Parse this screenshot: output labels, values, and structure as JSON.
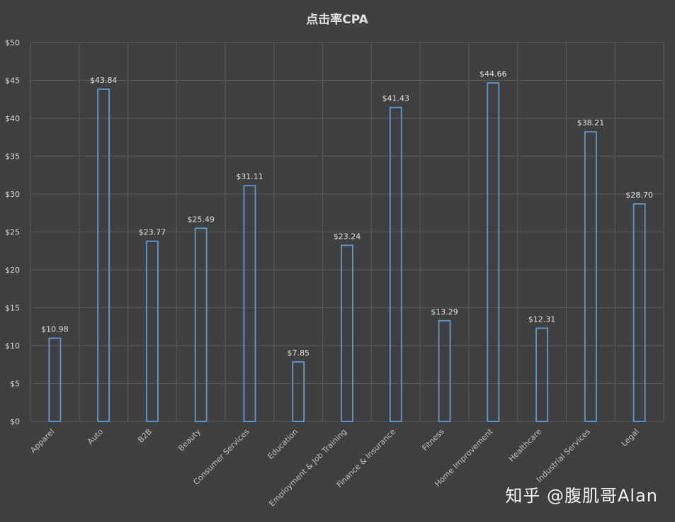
{
  "chart_data": {
    "type": "bar",
    "title": "点击率CPA",
    "categories": [
      "Apparel",
      "Auto",
      "B2B",
      "Beauty",
      "Consumer Services",
      "Education",
      "Employment & Job Training",
      "Finance & Insurance",
      "Fitness",
      "Home Improvement",
      "Healthcare",
      "Industrial Services",
      "Legal"
    ],
    "values": [
      10.98,
      43.84,
      23.77,
      25.49,
      31.11,
      7.85,
      23.24,
      41.43,
      13.29,
      44.66,
      12.31,
      38.21,
      28.7
    ],
    "data_labels": [
      "$10.98",
      "$43.84",
      "$23.77",
      "$25.49",
      "$31.11",
      "$7.85",
      "$23.24",
      "$41.43",
      "$13.29",
      "$44.66",
      "$12.31",
      "$38.21",
      "$28.70"
    ],
    "y_ticks": [
      "$0",
      "$5",
      "$10",
      "$15",
      "$20",
      "$25",
      "$30",
      "$35",
      "$40",
      "$45",
      "$50"
    ],
    "ylim": [
      0,
      50
    ],
    "grid": true,
    "bar_color": "#5b9bd5"
  },
  "watermark": "知乎 @腹肌哥Alan"
}
